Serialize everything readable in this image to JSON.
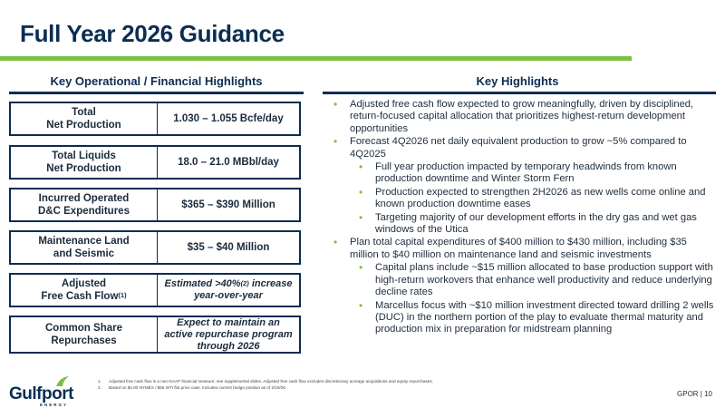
{
  "title": "Full Year 2026 Guidance",
  "left_heading": "Key Operational / Financial Highlights",
  "right_heading": "Key Highlights",
  "metrics": [
    {
      "label_line1": "Total",
      "label_line2": "Net Production",
      "value": "1.030 – 1.055 Bcfe/day"
    },
    {
      "label_line1": "Total Liquids",
      "label_line2": "Net Production",
      "value": "18.0 – 21.0 MBbl/day"
    },
    {
      "label_line1": "Incurred Operated",
      "label_line2": "D&C Expenditures",
      "value": "$365 – $390 Million"
    },
    {
      "label_line1": "Maintenance Land",
      "label_line2": "and Seismic",
      "value": "$35 – $40 Million"
    },
    {
      "label_line1": "Adjusted",
      "label_line2": "Free Cash Flow",
      "label_sup": "(1)",
      "value_pre": "Estimated >40%",
      "value_sup": "(2)",
      "value_post": " increase",
      "value_line2": "year-over-year"
    },
    {
      "label_line1": "Common Share",
      "label_line2": "Repurchases",
      "value_line1": "Expect to maintain an",
      "value_line2": "active repurchase program",
      "value_line3": "through 2026"
    }
  ],
  "bullets": [
    {
      "level": 1,
      "text": "Adjusted free cash flow expected to grow meaningfully, driven by disciplined, return-focused capital allocation that prioritizes highest-return development opportunities"
    },
    {
      "level": 1,
      "text": "Forecast 4Q2026 net daily equivalent production to grow ~5% compared to 4Q2025"
    },
    {
      "level": 2,
      "text": "Full year production impacted by temporary headwinds from known production downtime and Winter Storm Fern"
    },
    {
      "level": 2,
      "text": "Production expected to strengthen 2H2026 as new wells come online and known production downtime eases"
    },
    {
      "level": 2,
      "text": "Targeting majority of our development efforts in the dry gas and wet gas windows of the Utica"
    },
    {
      "level": 1,
      "text": "Plan total capital expenditures of $400 million to $430 million, including $35 million to $40 million on maintenance land and seismic investments"
    },
    {
      "level": 2,
      "text": "Capital plans include ~$15 million allocated to base production support with high-return workovers that enhance well productivity and reduce underlying decline rates"
    },
    {
      "level": 2,
      "text": "Marcellus focus with ~$10 million investment directed toward drilling 2 wells (DUC) in the northern portion of the play to evaluate thermal maturity and production mix in preparation for midstream planning"
    }
  ],
  "footnotes": [
    {
      "num": "1.",
      "text": "Adjusted free cash flow is a non-GAAP financial measure; see supplemental slides. Adjusted free cash flow excludes discretionary acreage acquisitions and equity repurchases."
    },
    {
      "num": "2.",
      "text": "Based on $4.00 NYMEX / $65 WTI flat price case. Includes current hedge position as of 2/19/26."
    }
  ],
  "logo": {
    "name": "Gulfport",
    "sub": "ENERGY"
  },
  "page_number": "GPOR | 10",
  "colors": {
    "navy": "#0b2d52",
    "green": "#7ac143"
  }
}
